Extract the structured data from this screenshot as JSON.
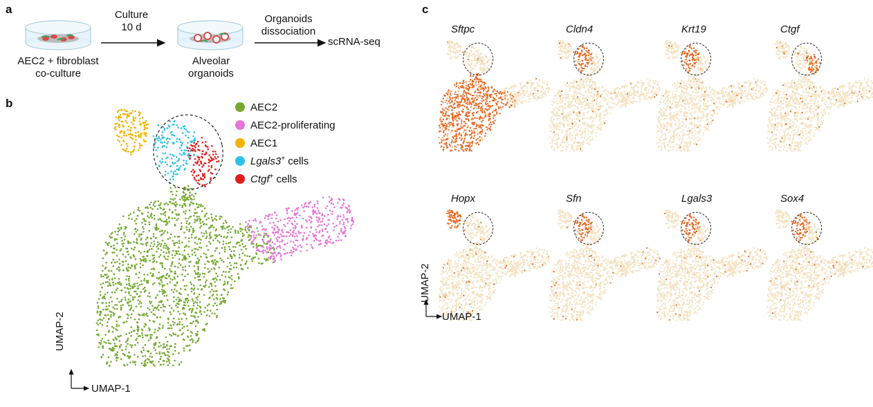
{
  "panels": {
    "a": "a",
    "b": "b",
    "c": "c"
  },
  "workflow": {
    "step1_line1": "AEC2 + fibroblast",
    "step1_line2": "co-culture",
    "arrow1_line1": "Culture",
    "arrow1_line2": "10 d",
    "step2_line1": "Alveolar",
    "step2_line2": "organoids",
    "arrow2_line1": "Organoids",
    "arrow2_line2": "dissociation",
    "step3": "scRNA-seq"
  },
  "umap_axes": {
    "x": "UMAP-1",
    "y": "UMAP-2"
  },
  "legend": [
    {
      "name": "AEC2",
      "sup": "",
      "suffix": "",
      "italic": false,
      "color": "#76A832"
    },
    {
      "name": "AEC2-proliferating",
      "sup": "",
      "suffix": "",
      "italic": false,
      "color": "#E676D8"
    },
    {
      "name": "AEC1",
      "sup": "",
      "suffix": "",
      "italic": false,
      "color": "#F2B300"
    },
    {
      "name": "Lgals3",
      "sup": "+",
      "suffix": " cells",
      "italic": true,
      "color": "#2EC1E6"
    },
    {
      "name": "Ctgf",
      "sup": "+",
      "suffix": " cells",
      "italic": true,
      "color": "#E01E1E"
    }
  ],
  "genes": [
    "Sftpc",
    "Cldn4",
    "Krt19",
    "Ctgf",
    "Hopx",
    "Sfn",
    "Lgals3",
    "Sox4"
  ],
  "chart_data": [
    {
      "type": "scatter",
      "title": "",
      "xlabel": "UMAP-1",
      "ylabel": "UMAP-2",
      "series": [
        {
          "name": "AEC2",
          "color": "#76A832"
        },
        {
          "name": "AEC2-proliferating",
          "color": "#E676D8"
        },
        {
          "name": "AEC1",
          "color": "#F2B300"
        },
        {
          "name": "Lgals3+ cells",
          "color": "#2EC1E6"
        },
        {
          "name": "Ctgf+ cells",
          "color": "#E01E1E"
        }
      ],
      "legend": "top-right"
    },
    {
      "type": "scatter",
      "title": "",
      "xlabel": "UMAP-1",
      "ylabel": "UMAP-2",
      "facets": [
        {
          "gene": "Sftpc",
          "high_expression": "AEC2"
        },
        {
          "gene": "Cldn4",
          "high_expression": "Lgals3+ cells"
        },
        {
          "gene": "Krt19",
          "high_expression": "Lgals3+ cells"
        },
        {
          "gene": "Ctgf",
          "high_expression": "Ctgf+ cells"
        },
        {
          "gene": "Hopx",
          "high_expression": "AEC1"
        },
        {
          "gene": "Sfn",
          "high_expression": "Lgals3+ cells"
        },
        {
          "gene": "Lgals3",
          "high_expression": "Lgals3+ cells"
        },
        {
          "gene": "Sox4",
          "high_expression": "Lgals3+ cells"
        }
      ],
      "colors": {
        "low": "#F3E2C2",
        "high": "#E8641E"
      }
    }
  ]
}
